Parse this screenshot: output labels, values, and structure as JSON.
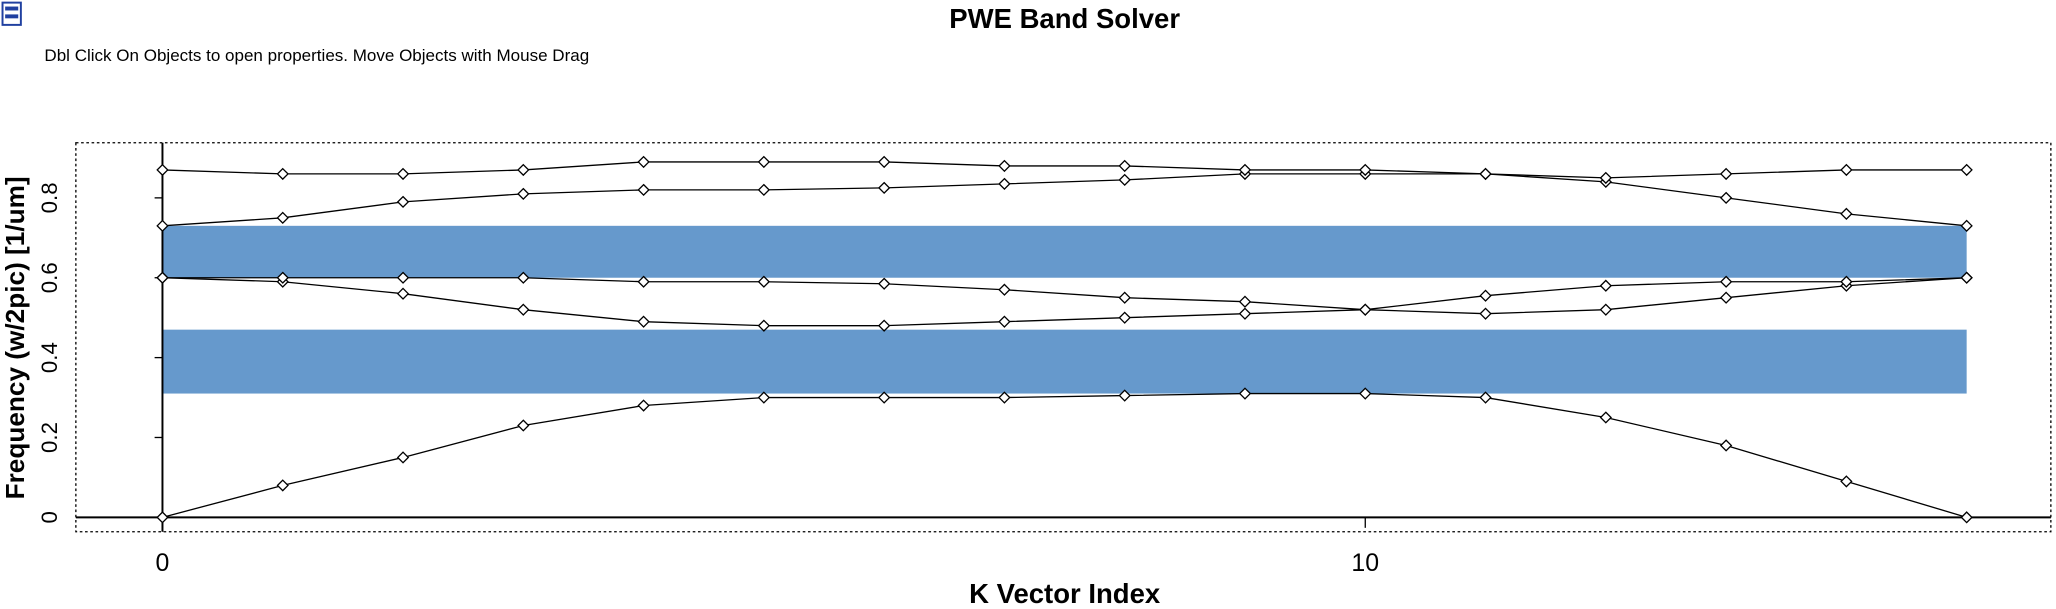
{
  "chart_data": {
    "type": "line",
    "title": "PWE Band Solver",
    "annotation": "Dbl Click On Objects to open properties.  Move Objects with Mouse Drag",
    "x_label": "K Vector Index",
    "y_label": "Frequency (w/2pic) [1/um]",
    "x": [
      0,
      1,
      2,
      3,
      4,
      5,
      6,
      7,
      8,
      9,
      10,
      11,
      12,
      13,
      14,
      15
    ],
    "series": [
      {
        "color": "#000000",
        "values": [
          0,
          0.08,
          0.15,
          0.23,
          0.28,
          0.3,
          0.3,
          0.3,
          0.305,
          0.31,
          0.31,
          0.3,
          0.25,
          0.18,
          0.09,
          0
        ]
      },
      {
        "color": "#000000",
        "values": [
          0.6,
          0.59,
          0.56,
          0.52,
          0.49,
          0.48,
          0.48,
          0.49,
          0.5,
          0.51,
          0.52,
          0.51,
          0.52,
          0.55,
          0.58,
          0.6
        ]
      },
      {
        "color": "#000000",
        "values": [
          0.6,
          0.6,
          0.6,
          0.6,
          0.59,
          0.59,
          0.585,
          0.57,
          0.55,
          0.54,
          0.52,
          0.555,
          0.58,
          0.59,
          0.59,
          0.6
        ]
      },
      {
        "color": "#000000",
        "values": [
          0.73,
          0.75,
          0.79,
          0.81,
          0.82,
          0.82,
          0.825,
          0.835,
          0.845,
          0.86,
          0.86,
          0.86,
          0.84,
          0.8,
          0.76,
          0.73
        ]
      },
      {
        "color": "#000000",
        "values": [
          0.87,
          0.86,
          0.86,
          0.87,
          0.89,
          0.89,
          0.89,
          0.88,
          0.88,
          0.87,
          0.87,
          0.86,
          0.85,
          0.86,
          0.87,
          0.87
        ]
      }
    ],
    "band_gaps": [
      [
        0.31,
        0.47
      ],
      [
        0.6,
        0.73
      ]
    ],
    "band_gap_color": "#6699cc",
    "xlim": [
      -0.72,
      15.7
    ],
    "ylim": [
      -0.036,
      0.938
    ],
    "xticks": [
      0,
      10
    ],
    "yticks": [
      0,
      0.2,
      0.4,
      0.6,
      0.8
    ]
  }
}
